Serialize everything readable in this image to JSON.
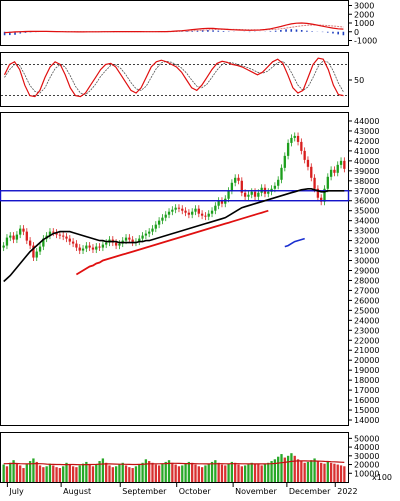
{
  "chart_data": [
    {
      "type": "line",
      "panel": "macd",
      "y_ticks": [
        3000,
        2000,
        1000,
        0,
        -1000
      ],
      "ylim": [
        -1400,
        3400
      ],
      "zero_line": 0,
      "series": [],
      "histogram": [
        -400,
        -380,
        -350,
        -200,
        -120,
        -60,
        -40,
        20,
        30,
        40,
        30,
        10,
        -20,
        -40,
        -50,
        -30,
        -10,
        0,
        10,
        20,
        30,
        40,
        30,
        20,
        10,
        0,
        -10,
        -20,
        -10,
        0,
        10,
        20,
        30,
        40,
        60,
        80,
        100,
        140,
        180,
        200,
        160,
        120,
        80,
        40,
        20,
        0,
        -20,
        -40,
        -30,
        -10,
        20,
        60,
        120,
        200,
        280,
        300,
        260,
        200,
        120,
        60,
        20,
        -40,
        -100,
        -200,
        -300,
        -400
      ],
      "macd_line": [
        -100,
        -60,
        -20,
        10,
        30,
        40,
        45,
        40,
        35,
        30,
        20,
        10,
        0,
        -10,
        -20,
        -15,
        -10,
        -5,
        0,
        5,
        10,
        15,
        20,
        22,
        20,
        18,
        15,
        10,
        8,
        10,
        15,
        20,
        40,
        80,
        120,
        180,
        240,
        300,
        360,
        400,
        380,
        340,
        300,
        260,
        220,
        200,
        180,
        170,
        180,
        200,
        260,
        340,
        460,
        600,
        760,
        900,
        980,
        1000,
        960,
        880,
        760,
        640,
        520,
        420,
        340,
        300
      ],
      "signal_line": [
        -80,
        -70,
        -50,
        -30,
        -10,
        5,
        15,
        25,
        30,
        32,
        30,
        25,
        20,
        12,
        5,
        0,
        -5,
        -6,
        -4,
        0,
        4,
        8,
        12,
        16,
        18,
        18,
        17,
        15,
        13,
        12,
        12,
        14,
        20,
        32,
        50,
        75,
        105,
        140,
        180,
        220,
        250,
        270,
        278,
        276,
        270,
        258,
        246,
        232,
        222,
        216,
        220,
        240,
        280,
        340,
        420,
        510,
        600,
        680,
        740,
        770,
        770,
        750,
        710,
        660,
        600,
        540
      ]
    },
    {
      "type": "line",
      "panel": "stochastic",
      "y_ticks": [
        50
      ],
      "ylim": [
        0,
        100
      ],
      "dashed_levels": [
        80,
        20
      ],
      "series": [],
      "k_line": [
        60,
        80,
        85,
        70,
        40,
        20,
        18,
        30,
        55,
        75,
        85,
        80,
        60,
        35,
        20,
        18,
        25,
        40,
        55,
        70,
        80,
        82,
        75,
        60,
        45,
        30,
        25,
        35,
        55,
        75,
        85,
        88,
        85,
        80,
        75,
        65,
        50,
        35,
        30,
        40,
        55,
        70,
        82,
        86,
        84,
        80,
        78,
        75,
        70,
        65,
        60,
        65,
        75,
        85,
        90,
        82,
        60,
        35,
        25,
        30,
        55,
        80,
        92,
        90,
        70,
        40,
        22,
        20
      ],
      "d_line": [
        55,
        70,
        80,
        78,
        60,
        40,
        28,
        25,
        35,
        55,
        72,
        80,
        75,
        58,
        38,
        25,
        22,
        30,
        42,
        57,
        68,
        78,
        79,
        72,
        60,
        45,
        33,
        30,
        38,
        55,
        72,
        83,
        86,
        84,
        79,
        73,
        63,
        50,
        38,
        35,
        42,
        55,
        69,
        80,
        84,
        83,
        80,
        77,
        74,
        70,
        65,
        63,
        67,
        75,
        83,
        86,
        77,
        59,
        40,
        30,
        37,
        55,
        76,
        87,
        84,
        67,
        44,
        27
      ]
    },
    {
      "type": "candlestick",
      "panel": "price",
      "x_labels": [
        "July",
        "August",
        "September",
        "October",
        "November",
        "December",
        "2022"
      ],
      "y_ticks": [
        44000,
        43000,
        42000,
        41000,
        40000,
        39000,
        38000,
        37000,
        36000,
        35000,
        34000,
        33000,
        32000,
        31000,
        30000,
        29000,
        28000,
        27000,
        26000,
        25000,
        24000,
        23000,
        22000,
        21000,
        20000,
        19000,
        18000,
        17000,
        16000,
        15000,
        14000
      ],
      "ylim": [
        13500,
        44700
      ],
      "resistance_zone": [
        36000,
        37000
      ],
      "series": [],
      "close": [
        31500,
        32300,
        32500,
        32100,
        32600,
        33200,
        32900,
        32000,
        31500,
        30300,
        30900,
        31400,
        32200,
        32500,
        32900,
        32800,
        32600,
        32500,
        32400,
        32200,
        31900,
        31700,
        31300,
        31000,
        31200,
        31500,
        31300,
        31100,
        31400,
        31300,
        31600,
        31800,
        32100,
        31800,
        31500,
        31700,
        32000,
        32300,
        32100,
        31800,
        31900,
        32200,
        32500,
        32700,
        32900,
        33200,
        33600,
        34000,
        34300,
        34600,
        34900,
        35100,
        35300,
        35200,
        35000,
        34800,
        34600,
        34900,
        35200,
        34700,
        34500,
        34400,
        34700,
        35000,
        35500,
        36000,
        35700,
        36200,
        37000,
        37800,
        38300,
        38000,
        36800,
        36400,
        36600,
        36900,
        36400,
        36800,
        37300,
        36700,
        36900,
        37200,
        37500,
        38100,
        39300,
        40500,
        41800,
        42300,
        42500,
        41900,
        41000,
        40100,
        39400,
        38300,
        37200,
        36300,
        35900,
        37200,
        38400,
        39100,
        38800,
        39600,
        40000,
        39200
      ],
      "ma_black": [
        27900,
        28200,
        28500,
        28900,
        29300,
        29700,
        30100,
        30500,
        30900,
        31200,
        31500,
        31800,
        32100,
        32300,
        32500,
        32700,
        32800,
        32900,
        32900,
        32900,
        32900,
        32800,
        32700,
        32600,
        32500,
        32400,
        32300,
        32200,
        32100,
        32000,
        32000,
        31900,
        31900,
        31900,
        31900,
        31800,
        31800,
        31800,
        31800,
        31800,
        31800,
        31900,
        31900,
        32000,
        32000,
        32100,
        32200,
        32300,
        32400,
        32500,
        32600,
        32700,
        32800,
        32900,
        33000,
        33100,
        33200,
        33300,
        33400,
        33500,
        33600,
        33700,
        33800,
        33900,
        34000,
        34100,
        34200,
        34300,
        34500,
        34700,
        34900,
        35100,
        35300,
        35400,
        35500,
        35600,
        35700,
        35800,
        35900,
        36000,
        36100,
        36200,
        36300,
        36400,
        36500,
        36600,
        36700,
        36800,
        36900,
        37000,
        37100,
        37150,
        37200,
        37200,
        37100,
        37000,
        36900,
        36900,
        37000,
        37000,
        37000,
        37000,
        37000,
        37000
      ],
      "ma_red_start_index": 22,
      "ma_red": [
        28600,
        28800,
        29000,
        29200,
        29400,
        29500,
        29700,
        29800,
        30000,
        30100,
        30200,
        30300,
        30400,
        30500,
        30600,
        30700,
        30800,
        30900,
        31000,
        31100,
        31200,
        31300,
        31400,
        31500,
        31600,
        31700,
        31800,
        31900,
        32000,
        32100,
        32200,
        32300,
        32400,
        32500,
        32600,
        32700,
        32800,
        32900,
        33000,
        33100,
        33200,
        33300,
        33400,
        33500,
        33600,
        33700,
        33800,
        33900,
        34000,
        34100,
        34200,
        34300,
        34400,
        34500,
        34600,
        34700,
        34800,
        34900,
        35000
      ],
      "ma_blue_start_index": 85,
      "ma_blue": [
        31400,
        31500,
        31700,
        31900,
        32000,
        32100,
        32200
      ]
    },
    {
      "type": "bar",
      "panel": "volume",
      "y_ticks": [
        50000,
        40000,
        30000,
        20000,
        10000
      ],
      "ylim": [
        0,
        55000
      ],
      "unit_label": "x100",
      "values": [
        20000,
        18000,
        22000,
        25000,
        21000,
        19000,
        16000,
        20000,
        24000,
        27000,
        23000,
        19000,
        17000,
        18000,
        21000,
        19000,
        17000,
        16000,
        18000,
        22000,
        20000,
        18000,
        17000,
        19000,
        21000,
        23000,
        20000,
        18000,
        20000,
        24000,
        27000,
        22000,
        19000,
        17000,
        18000,
        20000,
        22000,
        19000,
        17000,
        16000,
        18000,
        20000,
        22000,
        26000,
        24000,
        22000,
        20000,
        19000,
        21000,
        23000,
        25000,
        22000,
        20000,
        18000,
        19000,
        21000,
        23000,
        22000,
        20000,
        18000,
        17000,
        19000,
        21000,
        23000,
        25000,
        22000,
        20000,
        19000,
        21000,
        23000,
        22000,
        20000,
        18000,
        19000,
        20000,
        22000,
        21000,
        20000,
        19000,
        21000,
        22000,
        24000,
        26000,
        29000,
        32000,
        28000,
        30000,
        33000,
        30000,
        26000,
        24000,
        22000,
        23000,
        25000,
        27000,
        24000,
        22000,
        21000,
        23000,
        22000,
        21000,
        20000,
        19000,
        18000
      ],
      "ma_line": [
        21000,
        21000,
        21200,
        21300,
        21200,
        21000,
        20800,
        20700,
        20800,
        21000,
        21100,
        21000,
        20800,
        20500,
        20300,
        20200,
        20100,
        20000,
        19900,
        19900,
        20000,
        20000,
        19900,
        19800,
        19800,
        19900,
        20000,
        20100,
        20200,
        20400,
        20600,
        20700,
        20700,
        20600,
        20500,
        20400,
        20400,
        20300,
        20200,
        20100,
        20100,
        20200,
        20300,
        20600,
        20800,
        20900,
        20900,
        20900,
        21000,
        21100,
        21300,
        21400,
        21400,
        21300,
        21200,
        21100,
        21100,
        21100,
        21000,
        20900,
        20800,
        20700,
        20700,
        20800,
        20900,
        21000,
        21000,
        20900,
        20900,
        21000,
        21000,
        21000,
        20900,
        20800,
        20700,
        20700,
        20700,
        20700,
        20700,
        20700,
        20800,
        21000,
        21200,
        21600,
        22100,
        22500,
        23000,
        23600,
        24000,
        24200,
        24300,
        24200,
        24100,
        24100,
        24100,
        24000,
        23800,
        23600,
        23500,
        23300,
        23100,
        22900,
        22700,
        22500
      ]
    }
  ]
}
